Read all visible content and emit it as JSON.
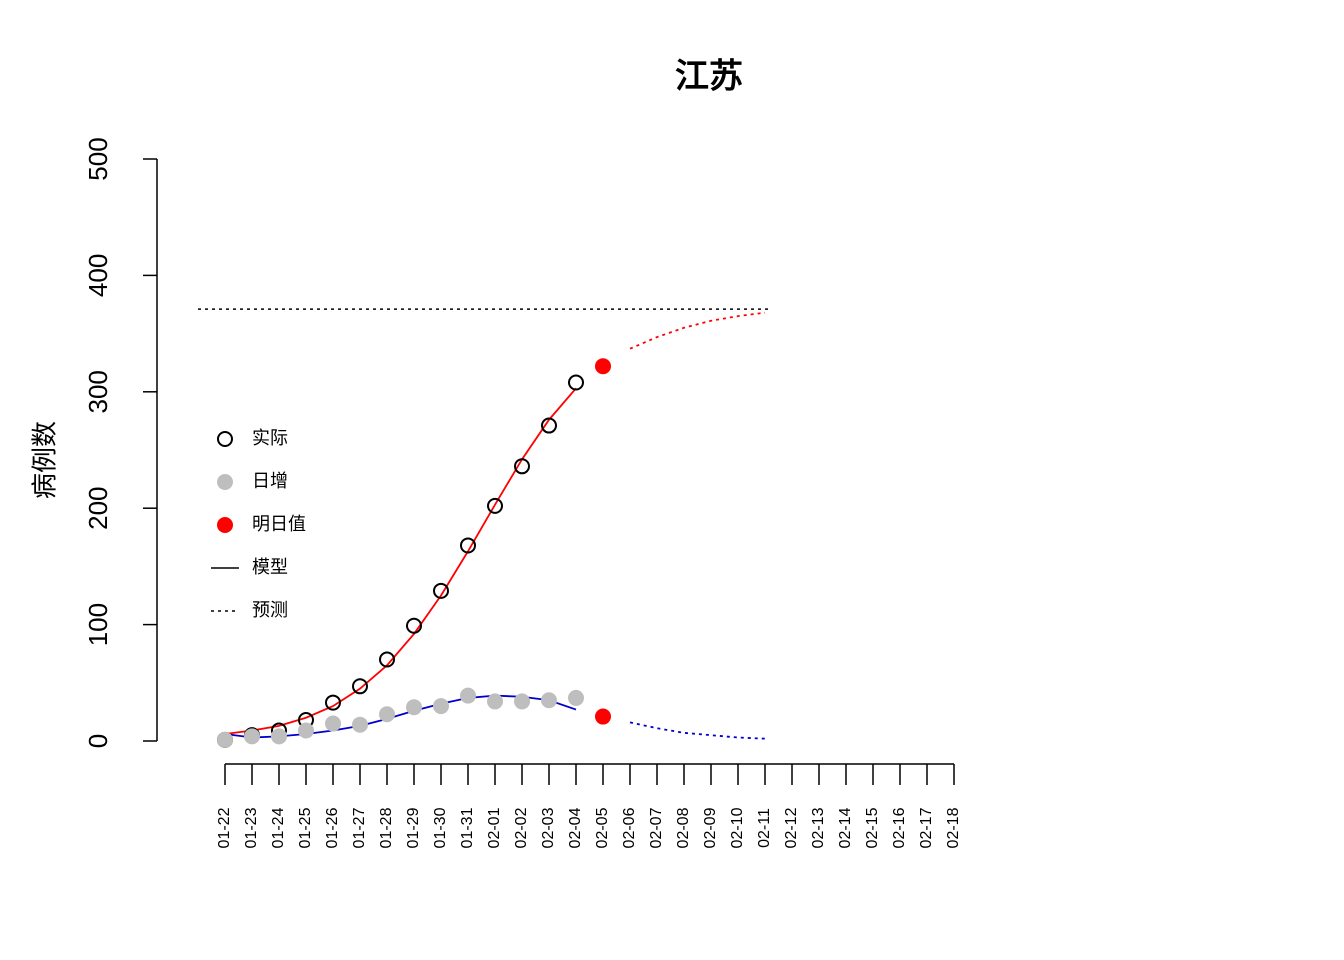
{
  "chart_data": {
    "type": "line",
    "title": "江苏",
    "ylabel": "病例数",
    "categories": [
      "01-22",
      "01-23",
      "01-24",
      "01-25",
      "01-26",
      "01-27",
      "01-28",
      "01-29",
      "01-30",
      "01-31",
      "02-01",
      "02-02",
      "02-03",
      "02-04",
      "02-05",
      "02-06",
      "02-07",
      "02-08",
      "02-09",
      "02-10",
      "02-11",
      "02-12",
      "02-13",
      "02-14",
      "02-15",
      "02-16",
      "02-17",
      "02-18"
    ],
    "ylim": [
      0,
      500
    ],
    "yticks": [
      0,
      100,
      200,
      300,
      400,
      500
    ],
    "series": [
      {
        "name": "实际",
        "marker": "open-circle",
        "color": "#000000",
        "values": [
          1,
          5,
          9,
          18,
          33,
          47,
          70,
          99,
          129,
          168,
          202,
          236,
          271,
          308,
          null,
          null,
          null,
          null,
          null,
          null,
          null,
          null,
          null,
          null,
          null,
          null,
          null,
          null
        ]
      },
      {
        "name": "日增",
        "marker": "filled-circle",
        "color": "#bebebe",
        "values": [
          1,
          4,
          4,
          9,
          15,
          14,
          23,
          29,
          30,
          39,
          34,
          34,
          35,
          37,
          null,
          null,
          null,
          null,
          null,
          null,
          null,
          null,
          null,
          null,
          null,
          null,
          null,
          null
        ]
      },
      {
        "name": "明日值",
        "marker": "filled-circle",
        "color": "#ff0000",
        "x": [
          "02-05",
          "02-05"
        ],
        "values": [
          322,
          21
        ]
      }
    ],
    "lines": [
      {
        "color": "#ff0000",
        "dash": "solid",
        "values": [
          6,
          9,
          13,
          20,
          30,
          45,
          65,
          92,
          125,
          163,
          203,
          242,
          276,
          303,
          null,
          null,
          null,
          null,
          null,
          null,
          null,
          null,
          null,
          null,
          null,
          null,
          null,
          null
        ]
      },
      {
        "color": "#ff0000",
        "dash": "dotted",
        "values": [
          null,
          null,
          null,
          null,
          null,
          null,
          null,
          null,
          null,
          null,
          null,
          null,
          null,
          null,
          null,
          337,
          347,
          355,
          361,
          365,
          368,
          null,
          null,
          null,
          null,
          null,
          null,
          null
        ]
      },
      {
        "color": "#0000cd",
        "dash": "solid",
        "values": [
          6,
          3,
          4,
          6,
          9,
          13,
          19,
          26,
          32,
          37,
          39,
          38,
          35,
          27,
          null,
          null,
          null,
          null,
          null,
          null,
          null,
          null,
          null,
          null,
          null,
          null,
          null,
          null
        ]
      },
      {
        "color": "#0000cd",
        "dash": "dotted",
        "values": [
          null,
          null,
          null,
          null,
          null,
          null,
          null,
          null,
          null,
          null,
          null,
          null,
          null,
          null,
          null,
          16,
          11,
          7,
          5,
          3,
          2,
          null,
          null,
          null,
          null,
          null,
          null,
          null
        ]
      }
    ],
    "reference_line": {
      "value": 371,
      "dash": "dotted",
      "color": "#000000"
    },
    "legend_lines": [
      {
        "name": "模型",
        "dash": "solid"
      },
      {
        "name": "预测",
        "dash": "dotted"
      }
    ]
  }
}
